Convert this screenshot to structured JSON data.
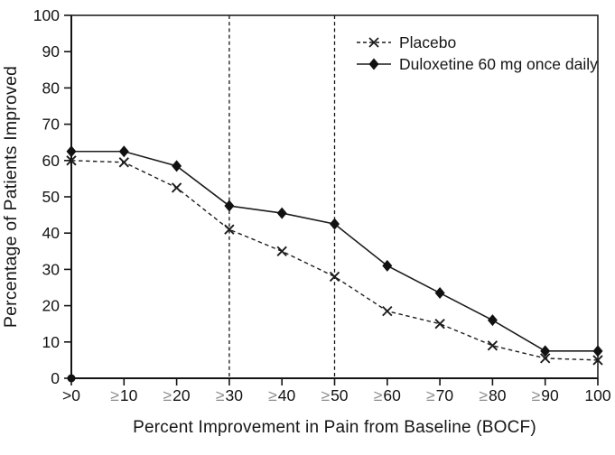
{
  "chart_data": {
    "type": "line",
    "title": "",
    "xlabel": "Percent Improvement in Pain from Baseline (BOCF)",
    "ylabel": "Percentage of Patients Improved",
    "categories": [
      ">0",
      "≥10",
      "≥20",
      "≥30",
      "≥40",
      "≥50",
      "≥60",
      "≥70",
      "≥80",
      "≥90",
      "100"
    ],
    "ylim": [
      0,
      100
    ],
    "y_tick_step": 10,
    "grid": false,
    "legend_position": "top-right-inside",
    "reference_lines_at": [
      "≥30",
      "≥50"
    ],
    "origin_marker": {
      "category": ">0",
      "value": 0,
      "shape": "filled-circle"
    },
    "series": [
      {
        "name": "Placebo",
        "line": "dashed",
        "marker": "x",
        "color": "#1c1c1c",
        "values": [
          60,
          59.5,
          52.5,
          41,
          35,
          28,
          18.5,
          15,
          9,
          5.5,
          5
        ]
      },
      {
        "name": "Duloxetine 60 mg once daily",
        "line": "solid",
        "marker": "diamond",
        "color": "#1c1c1c",
        "values": [
          62.5,
          62.5,
          58.5,
          47.5,
          45.5,
          42.5,
          31,
          23.5,
          16,
          7.5,
          7.5
        ]
      }
    ],
    "colors": {
      "axis": "#141414",
      "tick_label": "#141414",
      "gte_symbol": "#8c8c8c"
    }
  }
}
